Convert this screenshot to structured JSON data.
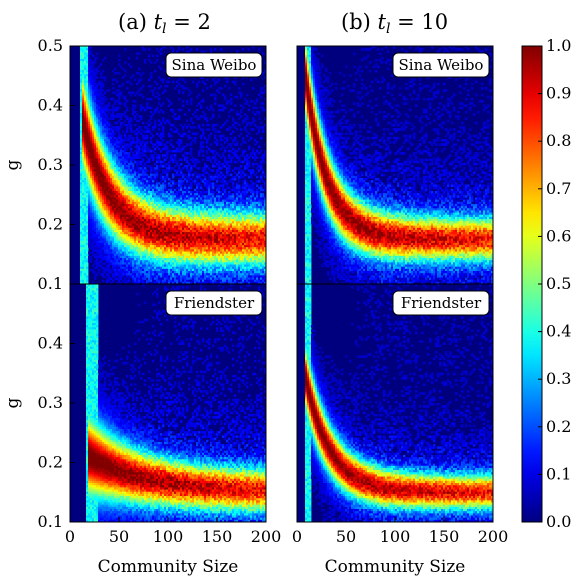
{
  "panel_titles": {
    "a": {
      "prefix": "(a) ",
      "var": "t",
      "sub": "l",
      "eq": " = 2"
    },
    "b": {
      "prefix": "(b) ",
      "var": "t",
      "sub": "l",
      "eq": " = 10"
    }
  },
  "colorbar": {
    "colormap": "jet",
    "ticks": [
      "0.0",
      "0.1",
      "0.2",
      "0.3",
      "0.4",
      "0.5",
      "0.6",
      "0.7",
      "0.8",
      "0.9",
      "1.0"
    ],
    "range": [
      0,
      1
    ]
  },
  "colors": {
    "background_low": "#00007f",
    "badge_fill": "#ffffff",
    "badge_edge": "#000000"
  },
  "chart_data": [
    {
      "type": "heatmap",
      "panel": "top-left",
      "annotation": "Sina Weibo",
      "xlabel": "",
      "ylabel": "g",
      "xlim": [
        0,
        200
      ],
      "ylim": [
        0.1,
        0.5
      ],
      "yticks": [
        "0.1",
        "0.2",
        "0.3",
        "0.4",
        "0.5"
      ],
      "ridge": {
        "peak_x": 20,
        "peak_g": 0.33,
        "asymptote_g": 0.175,
        "decay": 28,
        "width_g": 0.03
      },
      "legend": "top-right"
    },
    {
      "type": "heatmap",
      "panel": "top-right",
      "annotation": "Sina Weibo",
      "xlabel": "",
      "ylabel": "",
      "xlim": [
        0,
        200
      ],
      "ylim": [
        0.1,
        0.5
      ],
      "ridge": {
        "peak_x": 15,
        "peak_g": 0.38,
        "asymptote_g": 0.175,
        "decay": 22,
        "width_g": 0.025
      },
      "legend": "top-right"
    },
    {
      "type": "heatmap",
      "panel": "bottom-left",
      "annotation": "Friendster",
      "xlabel": "Community Size",
      "ylabel": "g",
      "xlim": [
        0,
        200
      ],
      "ylim": [
        0.1,
        0.5
      ],
      "xticks": [
        "0",
        "50",
        "100",
        "150",
        "200"
      ],
      "yticks": [
        "0.1",
        "0.2",
        "0.3",
        "0.4"
      ],
      "ridge": {
        "peak_x": 30,
        "peak_g": 0.2,
        "asymptote_g": 0.15,
        "decay": 60,
        "width_g": 0.025
      },
      "legend": "top-right"
    },
    {
      "type": "heatmap",
      "panel": "bottom-right",
      "annotation": "Friendster",
      "xlabel": "Community Size",
      "ylabel": "",
      "xlim": [
        0,
        200
      ],
      "ylim": [
        0.1,
        0.5
      ],
      "xticks": [
        "0",
        "50",
        "100",
        "150",
        "200"
      ],
      "ridge": {
        "peak_x": 15,
        "peak_g": 0.3,
        "asymptote_g": 0.15,
        "decay": 25,
        "width_g": 0.02
      },
      "legend": "top-right"
    }
  ]
}
